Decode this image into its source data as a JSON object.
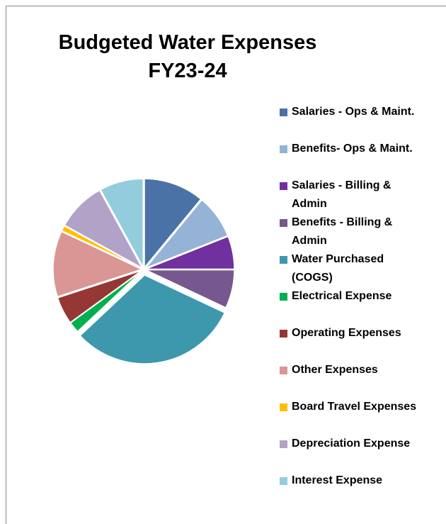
{
  "chart_data": {
    "type": "pie",
    "title": "Budgeted Water Expenses FY23-24",
    "categories": [
      "Salaries - Ops & Maint.",
      "Benefits- Ops & Maint.",
      "Salaries - Billing & Admin",
      "Benefits - Billing & Admin",
      "Water Purchased (COGS)",
      "Electrical Expense",
      "Operating Expenses",
      "Other Expenses",
      "Board Travel Expenses",
      "Depreciation Expense",
      "Interest Expense"
    ],
    "values": [
      11,
      8,
      6,
      7,
      31,
      2,
      5,
      12,
      1,
      9,
      8
    ],
    "colors": [
      "#4a72a6",
      "#95b3d7",
      "#7030a0",
      "#76588f",
      "#3e98ad",
      "#00b050",
      "#953735",
      "#d99694",
      "#ffc000",
      "#b3a2c7",
      "#93cddd"
    ],
    "legend": "right"
  }
}
